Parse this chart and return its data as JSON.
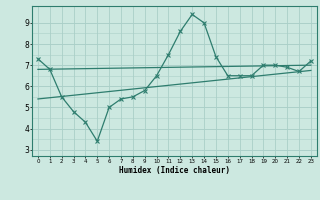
{
  "xlabel": "Humidex (Indice chaleur)",
  "background_color": "#cce8e0",
  "grid_color": "#aacfc8",
  "line_color": "#2e7d6e",
  "xlim": [
    -0.5,
    23.5
  ],
  "ylim": [
    2.7,
    9.8
  ],
  "yticks": [
    3,
    4,
    5,
    6,
    7,
    8,
    9
  ],
  "xticks": [
    0,
    1,
    2,
    3,
    4,
    5,
    6,
    7,
    8,
    9,
    10,
    11,
    12,
    13,
    14,
    15,
    16,
    17,
    18,
    19,
    20,
    21,
    22,
    23
  ],
  "series1_x": [
    0,
    1,
    2,
    3,
    4,
    5,
    6,
    7,
    8,
    9,
    10,
    11,
    12,
    13,
    14,
    15,
    16,
    17,
    18,
    19,
    20,
    21,
    22,
    23
  ],
  "series1_y": [
    7.3,
    6.8,
    5.5,
    4.8,
    4.3,
    3.4,
    5.0,
    5.4,
    5.5,
    5.8,
    6.5,
    7.5,
    8.6,
    9.4,
    9.0,
    7.4,
    6.5,
    6.5,
    6.5,
    7.0,
    7.0,
    6.9,
    6.7,
    7.2
  ],
  "series2_x": [
    0,
    23
  ],
  "series2_y": [
    6.8,
    7.0
  ],
  "series3_x": [
    0,
    23
  ],
  "series3_y": [
    5.4,
    6.75
  ]
}
